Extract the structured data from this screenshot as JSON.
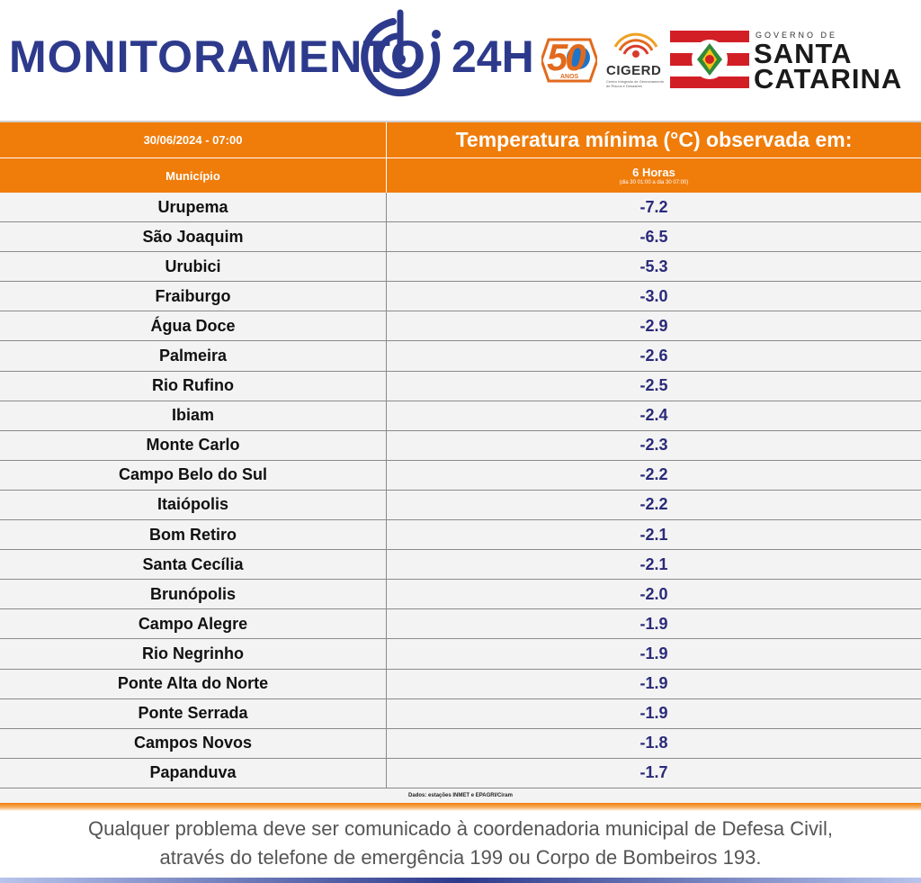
{
  "header": {
    "title": "MONITORAMENTO",
    "title_suffix": "24H",
    "logo50": {
      "number": "50",
      "sub": "ANOS"
    },
    "cigerd": {
      "label": "CIGERD",
      "sub": "Centro Integrado de Gerenciamento de Riscos e Desastres"
    },
    "government": {
      "label": "GOVERNO DE",
      "line1": "SANTA",
      "line2": "CATARINA"
    }
  },
  "table": {
    "datetime": "30/06/2024 - 07:00",
    "main_title": "Temperatura mínima (°C) observada em:",
    "column_municipio": "Município",
    "column_period": "6 Horas",
    "column_period_sub": "(dia 30 01:00 a dia 30 07:00)",
    "rows": [
      {
        "municipio": "Urupema",
        "temp": "-7.2"
      },
      {
        "municipio": "São Joaquim",
        "temp": "-6.5"
      },
      {
        "municipio": "Urubici",
        "temp": "-5.3"
      },
      {
        "municipio": "Fraiburgo",
        "temp": "-3.0"
      },
      {
        "municipio": "Água Doce",
        "temp": "-2.9"
      },
      {
        "municipio": "Palmeira",
        "temp": "-2.6"
      },
      {
        "municipio": "Rio Rufino",
        "temp": "-2.5"
      },
      {
        "municipio": "Ibiam",
        "temp": "-2.4"
      },
      {
        "municipio": "Monte Carlo",
        "temp": "-2.3"
      },
      {
        "municipio": "Campo Belo do Sul",
        "temp": "-2.2"
      },
      {
        "municipio": "Itaiópolis",
        "temp": "-2.2"
      },
      {
        "municipio": "Bom Retiro",
        "temp": "-2.1"
      },
      {
        "municipio": "Santa Cecília",
        "temp": "-2.1"
      },
      {
        "municipio": "Brunópolis",
        "temp": "-2.0"
      },
      {
        "municipio": "Campo Alegre",
        "temp": "-1.9"
      },
      {
        "municipio": "Rio Negrinho",
        "temp": "-1.9"
      },
      {
        "municipio": "Ponte Alta do Norte",
        "temp": "-1.9"
      },
      {
        "municipio": "Ponte Serrada",
        "temp": "-1.9"
      },
      {
        "municipio": "Campos Novos",
        "temp": "-1.8"
      },
      {
        "municipio": "Papanduva",
        "temp": "-1.7"
      }
    ],
    "source": "Dados: estações INMET e EPAGRI/Ciram"
  },
  "footer": {
    "line1": "Qualquer problema deve ser comunicado à coordenadoria municipal de Defesa Civil,",
    "line2": "através do telefone de emergência 199 ou Corpo de Bombeiros 193."
  },
  "colors": {
    "brand_blue": "#2d3a8c",
    "header_orange": "#f07c0a",
    "value_blue": "#2a2a7a"
  }
}
